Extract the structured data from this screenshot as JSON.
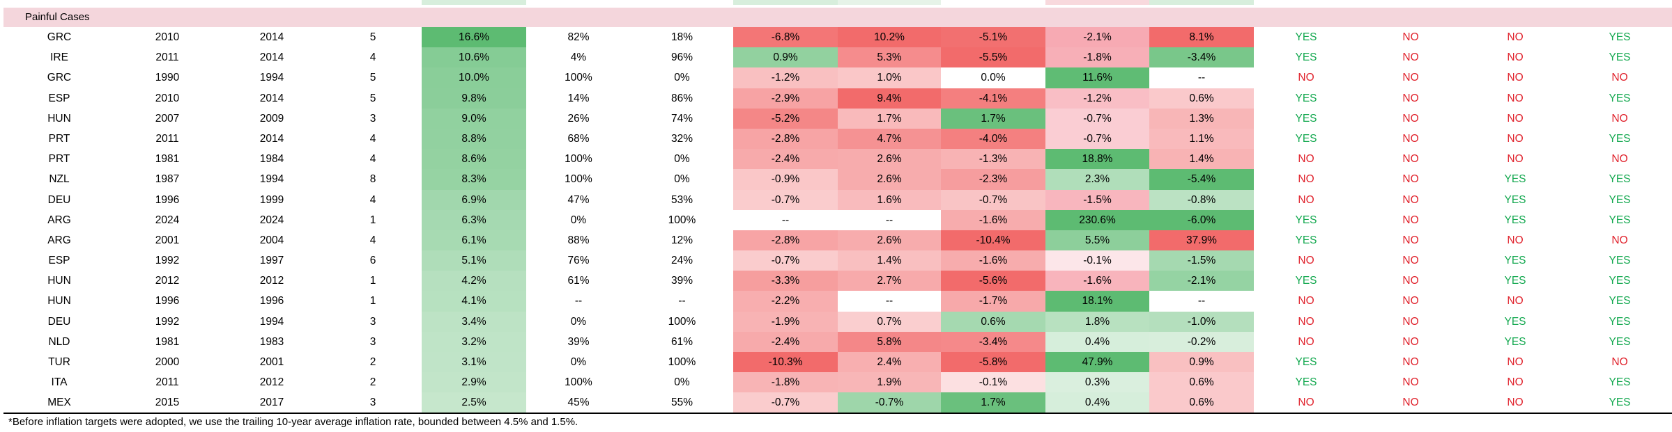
{
  "section_title": "Painful Cases",
  "rows": [
    [
      "GRC",
      "2010",
      "2014",
      "5",
      "16.6%",
      "82%",
      "18%",
      "-6.8%",
      "10.2%",
      "-5.1%",
      "-2.1%",
      "8.1%",
      "YES",
      "NO",
      "NO",
      "YES"
    ],
    [
      "IRE",
      "2011",
      "2014",
      "4",
      "10.6%",
      "4%",
      "96%",
      "0.9%",
      "5.3%",
      "-5.5%",
      "-1.8%",
      "-3.4%",
      "YES",
      "NO",
      "NO",
      "YES"
    ],
    [
      "GRC",
      "1990",
      "1994",
      "5",
      "10.0%",
      "100%",
      "0%",
      "-1.2%",
      "1.0%",
      "0.0%",
      "11.6%",
      "--",
      "NO",
      "NO",
      "NO",
      "NO"
    ],
    [
      "ESP",
      "2010",
      "2014",
      "5",
      "9.8%",
      "14%",
      "86%",
      "-2.9%",
      "9.4%",
      "-4.1%",
      "-1.2%",
      "0.6%",
      "YES",
      "NO",
      "NO",
      "YES"
    ],
    [
      "HUN",
      "2007",
      "2009",
      "3",
      "9.0%",
      "26%",
      "74%",
      "-5.2%",
      "1.7%",
      "1.7%",
      "-0.7%",
      "1.3%",
      "YES",
      "NO",
      "NO",
      "NO"
    ],
    [
      "PRT",
      "2011",
      "2014",
      "4",
      "8.8%",
      "68%",
      "32%",
      "-2.8%",
      "4.7%",
      "-4.0%",
      "-0.7%",
      "1.1%",
      "YES",
      "NO",
      "NO",
      "YES"
    ],
    [
      "PRT",
      "1981",
      "1984",
      "4",
      "8.6%",
      "100%",
      "0%",
      "-2.4%",
      "2.6%",
      "-1.3%",
      "18.8%",
      "1.4%",
      "NO",
      "NO",
      "NO",
      "NO"
    ],
    [
      "NZL",
      "1987",
      "1994",
      "8",
      "8.3%",
      "100%",
      "0%",
      "-0.9%",
      "2.6%",
      "-2.3%",
      "2.3%",
      "-5.4%",
      "NO",
      "NO",
      "YES",
      "YES"
    ],
    [
      "DEU",
      "1996",
      "1999",
      "4",
      "6.9%",
      "47%",
      "53%",
      "-0.7%",
      "1.6%",
      "-0.7%",
      "-1.5%",
      "-0.8%",
      "NO",
      "NO",
      "YES",
      "YES"
    ],
    [
      "ARG",
      "2024",
      "2024",
      "1",
      "6.3%",
      "0%",
      "100%",
      "--",
      "--",
      "-1.6%",
      "230.6%",
      "-6.0%",
      "YES",
      "NO",
      "YES",
      "YES"
    ],
    [
      "ARG",
      "2001",
      "2004",
      "4",
      "6.1%",
      "88%",
      "12%",
      "-2.8%",
      "2.6%",
      "-10.4%",
      "5.5%",
      "37.9%",
      "YES",
      "NO",
      "NO",
      "NO"
    ],
    [
      "ESP",
      "1992",
      "1997",
      "6",
      "5.1%",
      "76%",
      "24%",
      "-0.7%",
      "1.4%",
      "-1.6%",
      "-0.1%",
      "-1.5%",
      "NO",
      "NO",
      "YES",
      "YES"
    ],
    [
      "HUN",
      "2012",
      "2012",
      "1",
      "4.2%",
      "61%",
      "39%",
      "-3.3%",
      "2.7%",
      "-5.6%",
      "-1.6%",
      "-2.1%",
      "YES",
      "NO",
      "YES",
      "YES"
    ],
    [
      "HUN",
      "1996",
      "1996",
      "1",
      "4.1%",
      "--",
      "--",
      "-2.2%",
      "--",
      "-1.7%",
      "18.1%",
      "--",
      "NO",
      "NO",
      "NO",
      "YES"
    ],
    [
      "DEU",
      "1992",
      "1994",
      "3",
      "3.4%",
      "0%",
      "100%",
      "-1.9%",
      "0.7%",
      "0.6%",
      "1.8%",
      "-1.0%",
      "NO",
      "NO",
      "YES",
      "YES"
    ],
    [
      "NLD",
      "1981",
      "1983",
      "3",
      "3.2%",
      "39%",
      "61%",
      "-2.4%",
      "5.8%",
      "-3.4%",
      "0.4%",
      "-0.2%",
      "NO",
      "NO",
      "YES",
      "YES"
    ],
    [
      "TUR",
      "2000",
      "2001",
      "2",
      "3.1%",
      "0%",
      "100%",
      "-10.3%",
      "2.4%",
      "-5.8%",
      "47.9%",
      "0.9%",
      "YES",
      "NO",
      "NO",
      "NO"
    ],
    [
      "ITA",
      "2011",
      "2012",
      "2",
      "2.9%",
      "100%",
      "0%",
      "-1.8%",
      "1.9%",
      "-0.1%",
      "0.3%",
      "0.6%",
      "YES",
      "NO",
      "NO",
      "YES"
    ],
    [
      "MEX",
      "2015",
      "2017",
      "3",
      "2.5%",
      "45%",
      "55%",
      "-0.7%",
      "-0.7%",
      "1.7%",
      "0.4%",
      "0.6%",
      "NO",
      "NO",
      "NO",
      "YES"
    ]
  ],
  "colors": {
    "green_strong": "#5dbb72",
    "red_strong": "#f26b6b",
    "section_band": "#f4d6dc",
    "yes_text": "#13a84f",
    "no_text": "#e0222c"
  },
  "footnote": "*Before inflation targets were adopted, we use the trailing 10-year average inflation rate, bounded between 4.5% and 1.5%."
}
